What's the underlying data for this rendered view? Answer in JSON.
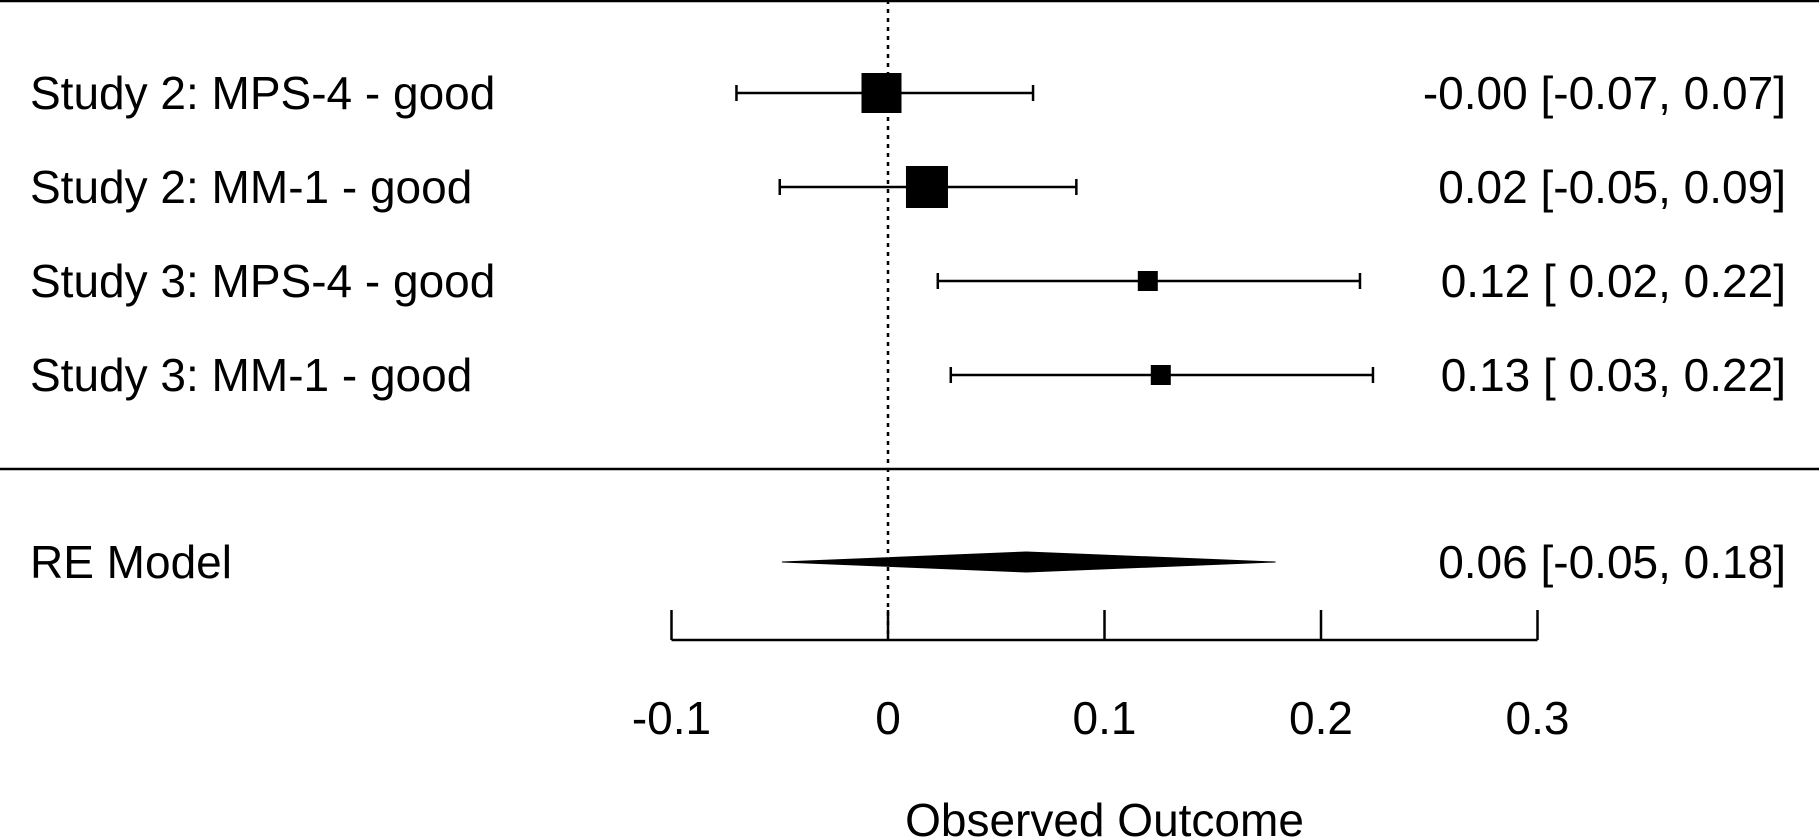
{
  "chart_data": {
    "type": "forest",
    "xlabel": "Observed Outcome",
    "xlim": [
      -0.1,
      0.3
    ],
    "xticks": [
      -0.1,
      0,
      0.1,
      0.2,
      0.3
    ],
    "xtick_labels": [
      "-0.1",
      "0",
      "0.1",
      "0.2",
      "0.3"
    ],
    "reference_line": 0,
    "studies": [
      {
        "label": "Study 2: MPS-4 - good",
        "estimate": -0.003,
        "ci_low": -0.07,
        "ci_high": 0.067,
        "weight": 3,
        "text": "-0.00 [-0.07, 0.07]"
      },
      {
        "label": "Study 2: MM-1 - good",
        "estimate": 0.018,
        "ci_low": -0.05,
        "ci_high": 0.087,
        "weight": 3.2,
        "text": "0.02 [-0.05, 0.09]"
      },
      {
        "label": "Study 3: MPS-4 - good",
        "estimate": 0.12,
        "ci_low": 0.023,
        "ci_high": 0.218,
        "weight": 1,
        "text": "0.12 [ 0.02, 0.22]"
      },
      {
        "label": "Study 3: MM-1 - good",
        "estimate": 0.126,
        "ci_low": 0.029,
        "ci_high": 0.224,
        "weight": 1,
        "text": "0.13 [ 0.03, 0.22]"
      }
    ],
    "summary": {
      "label": "RE Model",
      "estimate": 0.064,
      "ci_low": -0.049,
      "ci_high": 0.179,
      "text": "0.06 [-0.05, 0.18]"
    }
  }
}
